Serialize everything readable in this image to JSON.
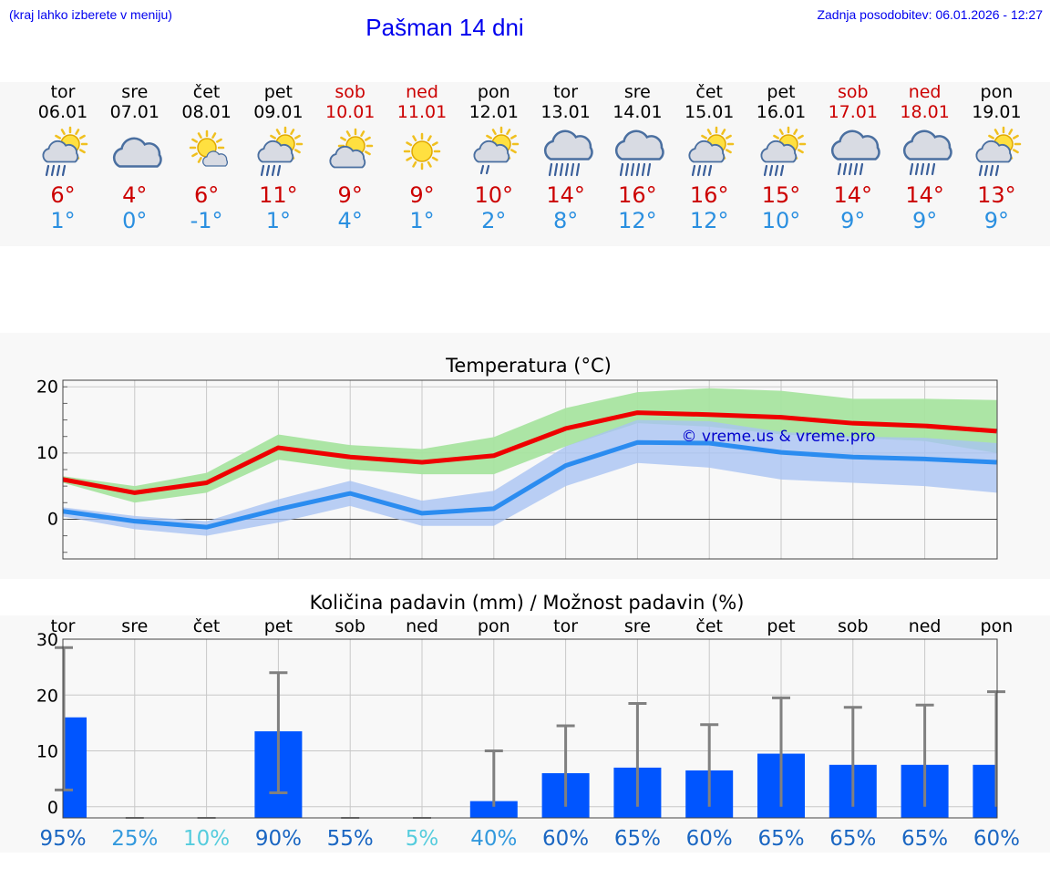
{
  "header": {
    "hint": "(kraj lahko izberete v meniju)",
    "title": "Pašman 14 dni",
    "updated": "Zadnja posodobitev: 06.01.2026 - 12:27"
  },
  "colors": {
    "link": "#0000ee",
    "max_temp": "#cc0000",
    "min_temp": "#2a8fe0",
    "max_band": "#a8e4a0",
    "min_band": "#a9c3f3",
    "max_line": "#ee0000",
    "min_line": "#2b8cf0",
    "precip_bar": "#0055ff",
    "error_bar": "#808080"
  },
  "days": [
    {
      "name": "tor",
      "date": "06.01",
      "icon": "sun-cloud-rain-icon",
      "max": "6°",
      "min": "1°",
      "weekend": false
    },
    {
      "name": "sre",
      "date": "07.01",
      "icon": "cloud-icon",
      "max": "4°",
      "min": "0°",
      "weekend": false
    },
    {
      "name": "čet",
      "date": "08.01",
      "icon": "sun-small-cloud-icon",
      "max": "6°",
      "min": "-1°",
      "weekend": false
    },
    {
      "name": "pet",
      "date": "09.01",
      "icon": "sun-cloud-rain-icon",
      "max": "11°",
      "min": "1°",
      "weekend": false
    },
    {
      "name": "sob",
      "date": "10.01",
      "icon": "sun-cloud-icon",
      "max": "9°",
      "min": "4°",
      "weekend": true
    },
    {
      "name": "ned",
      "date": "11.01",
      "icon": "sun-icon",
      "max": "9°",
      "min": "1°",
      "weekend": true
    },
    {
      "name": "pon",
      "date": "12.01",
      "icon": "sun-cloud-light-rain-icon",
      "max": "10°",
      "min": "2°",
      "weekend": false
    },
    {
      "name": "tor",
      "date": "13.01",
      "icon": "cloud-heavy-rain-icon",
      "max": "14°",
      "min": "8°",
      "weekend": false
    },
    {
      "name": "sre",
      "date": "14.01",
      "icon": "cloud-heavy-rain-icon",
      "max": "16°",
      "min": "12°",
      "weekend": false
    },
    {
      "name": "čet",
      "date": "15.01",
      "icon": "sun-cloud-rain-icon",
      "max": "16°",
      "min": "12°",
      "weekend": false
    },
    {
      "name": "pet",
      "date": "16.01",
      "icon": "sun-cloud-rain-icon",
      "max": "15°",
      "min": "10°",
      "weekend": false
    },
    {
      "name": "sob",
      "date": "17.01",
      "icon": "cloud-rain-icon",
      "max": "14°",
      "min": "9°",
      "weekend": true
    },
    {
      "name": "ned",
      "date": "18.01",
      "icon": "cloud-rain-icon",
      "max": "14°",
      "min": "9°",
      "weekend": true
    },
    {
      "name": "pon",
      "date": "19.01",
      "icon": "sun-cloud-rain-icon",
      "max": "13°",
      "min": "9°",
      "weekend": false
    }
  ],
  "chart_data": [
    {
      "type": "line",
      "title": "Temperatura (°C)",
      "ylim": [
        -6,
        21
      ],
      "yticks": [
        0,
        10,
        20
      ],
      "watermark": "© vreme.us & vreme.pro",
      "series": [
        {
          "name": "max",
          "values": [
            6,
            4,
            5.5,
            10.8,
            9.4,
            8.6,
            9.6,
            13.7,
            16.1,
            15.8,
            15.4,
            14.5,
            14.1,
            13.3
          ],
          "band_low": [
            5.5,
            2.5,
            4,
            9,
            7.5,
            6.8,
            6.8,
            11,
            14.5,
            14,
            12.8,
            12.3,
            11.8,
            10
          ],
          "band_high": [
            6.5,
            5,
            7,
            12.8,
            11.2,
            10.6,
            12.4,
            16.8,
            19.2,
            19.8,
            19.4,
            18.2,
            18.2,
            18
          ]
        },
        {
          "name": "min",
          "values": [
            1.2,
            -0.3,
            -1.2,
            1.5,
            3.9,
            0.9,
            1.6,
            8.1,
            11.6,
            11.5,
            10.1,
            9.4,
            9.1,
            8.6
          ],
          "band_low": [
            0.4,
            -1.5,
            -2.5,
            -0.5,
            2,
            -1,
            -1,
            5,
            8.5,
            7.8,
            6,
            5.5,
            5,
            4
          ],
          "band_high": [
            1.8,
            0.5,
            -0.3,
            3,
            5.8,
            2.8,
            4.3,
            11,
            15,
            14.8,
            13.2,
            12.5,
            12.3,
            11.5
          ]
        }
      ]
    },
    {
      "type": "bar",
      "title": "Količina padavin (mm) / Možnost padavin (%)",
      "ylim": [
        -2,
        30
      ],
      "yticks": [
        0,
        10,
        20,
        30
      ],
      "categories": [
        "tor",
        "sre",
        "čet",
        "pet",
        "sob",
        "ned",
        "pon",
        "tor",
        "sre",
        "čet",
        "pet",
        "sob",
        "ned",
        "pon"
      ],
      "values": [
        16,
        0,
        0,
        13.5,
        0,
        0,
        1,
        6,
        7,
        6.5,
        9.5,
        7.5,
        7.5,
        7.5
      ],
      "error_low": [
        3,
        0,
        0,
        2.5,
        0,
        0,
        0,
        0,
        0,
        0,
        0,
        0,
        0,
        0
      ],
      "error_high": [
        28.5,
        0,
        0,
        24,
        0,
        0,
        10,
        14.5,
        18.5,
        14.7,
        19.5,
        17.8,
        18.2,
        20.6
      ],
      "probability": [
        "95%",
        "25%",
        "10%",
        "90%",
        "55%",
        "5%",
        "40%",
        "60%",
        "65%",
        "60%",
        "65%",
        "65%",
        "65%",
        "60%"
      ],
      "probability_colors": [
        "#1a66c2",
        "#3399dd",
        "#55ccdd",
        "#1a66c2",
        "#1a66c2",
        "#55ccdd",
        "#3399dd",
        "#1a66c2",
        "#1a66c2",
        "#1a66c2",
        "#1a66c2",
        "#1a66c2",
        "#1a66c2",
        "#1a66c2"
      ]
    }
  ]
}
